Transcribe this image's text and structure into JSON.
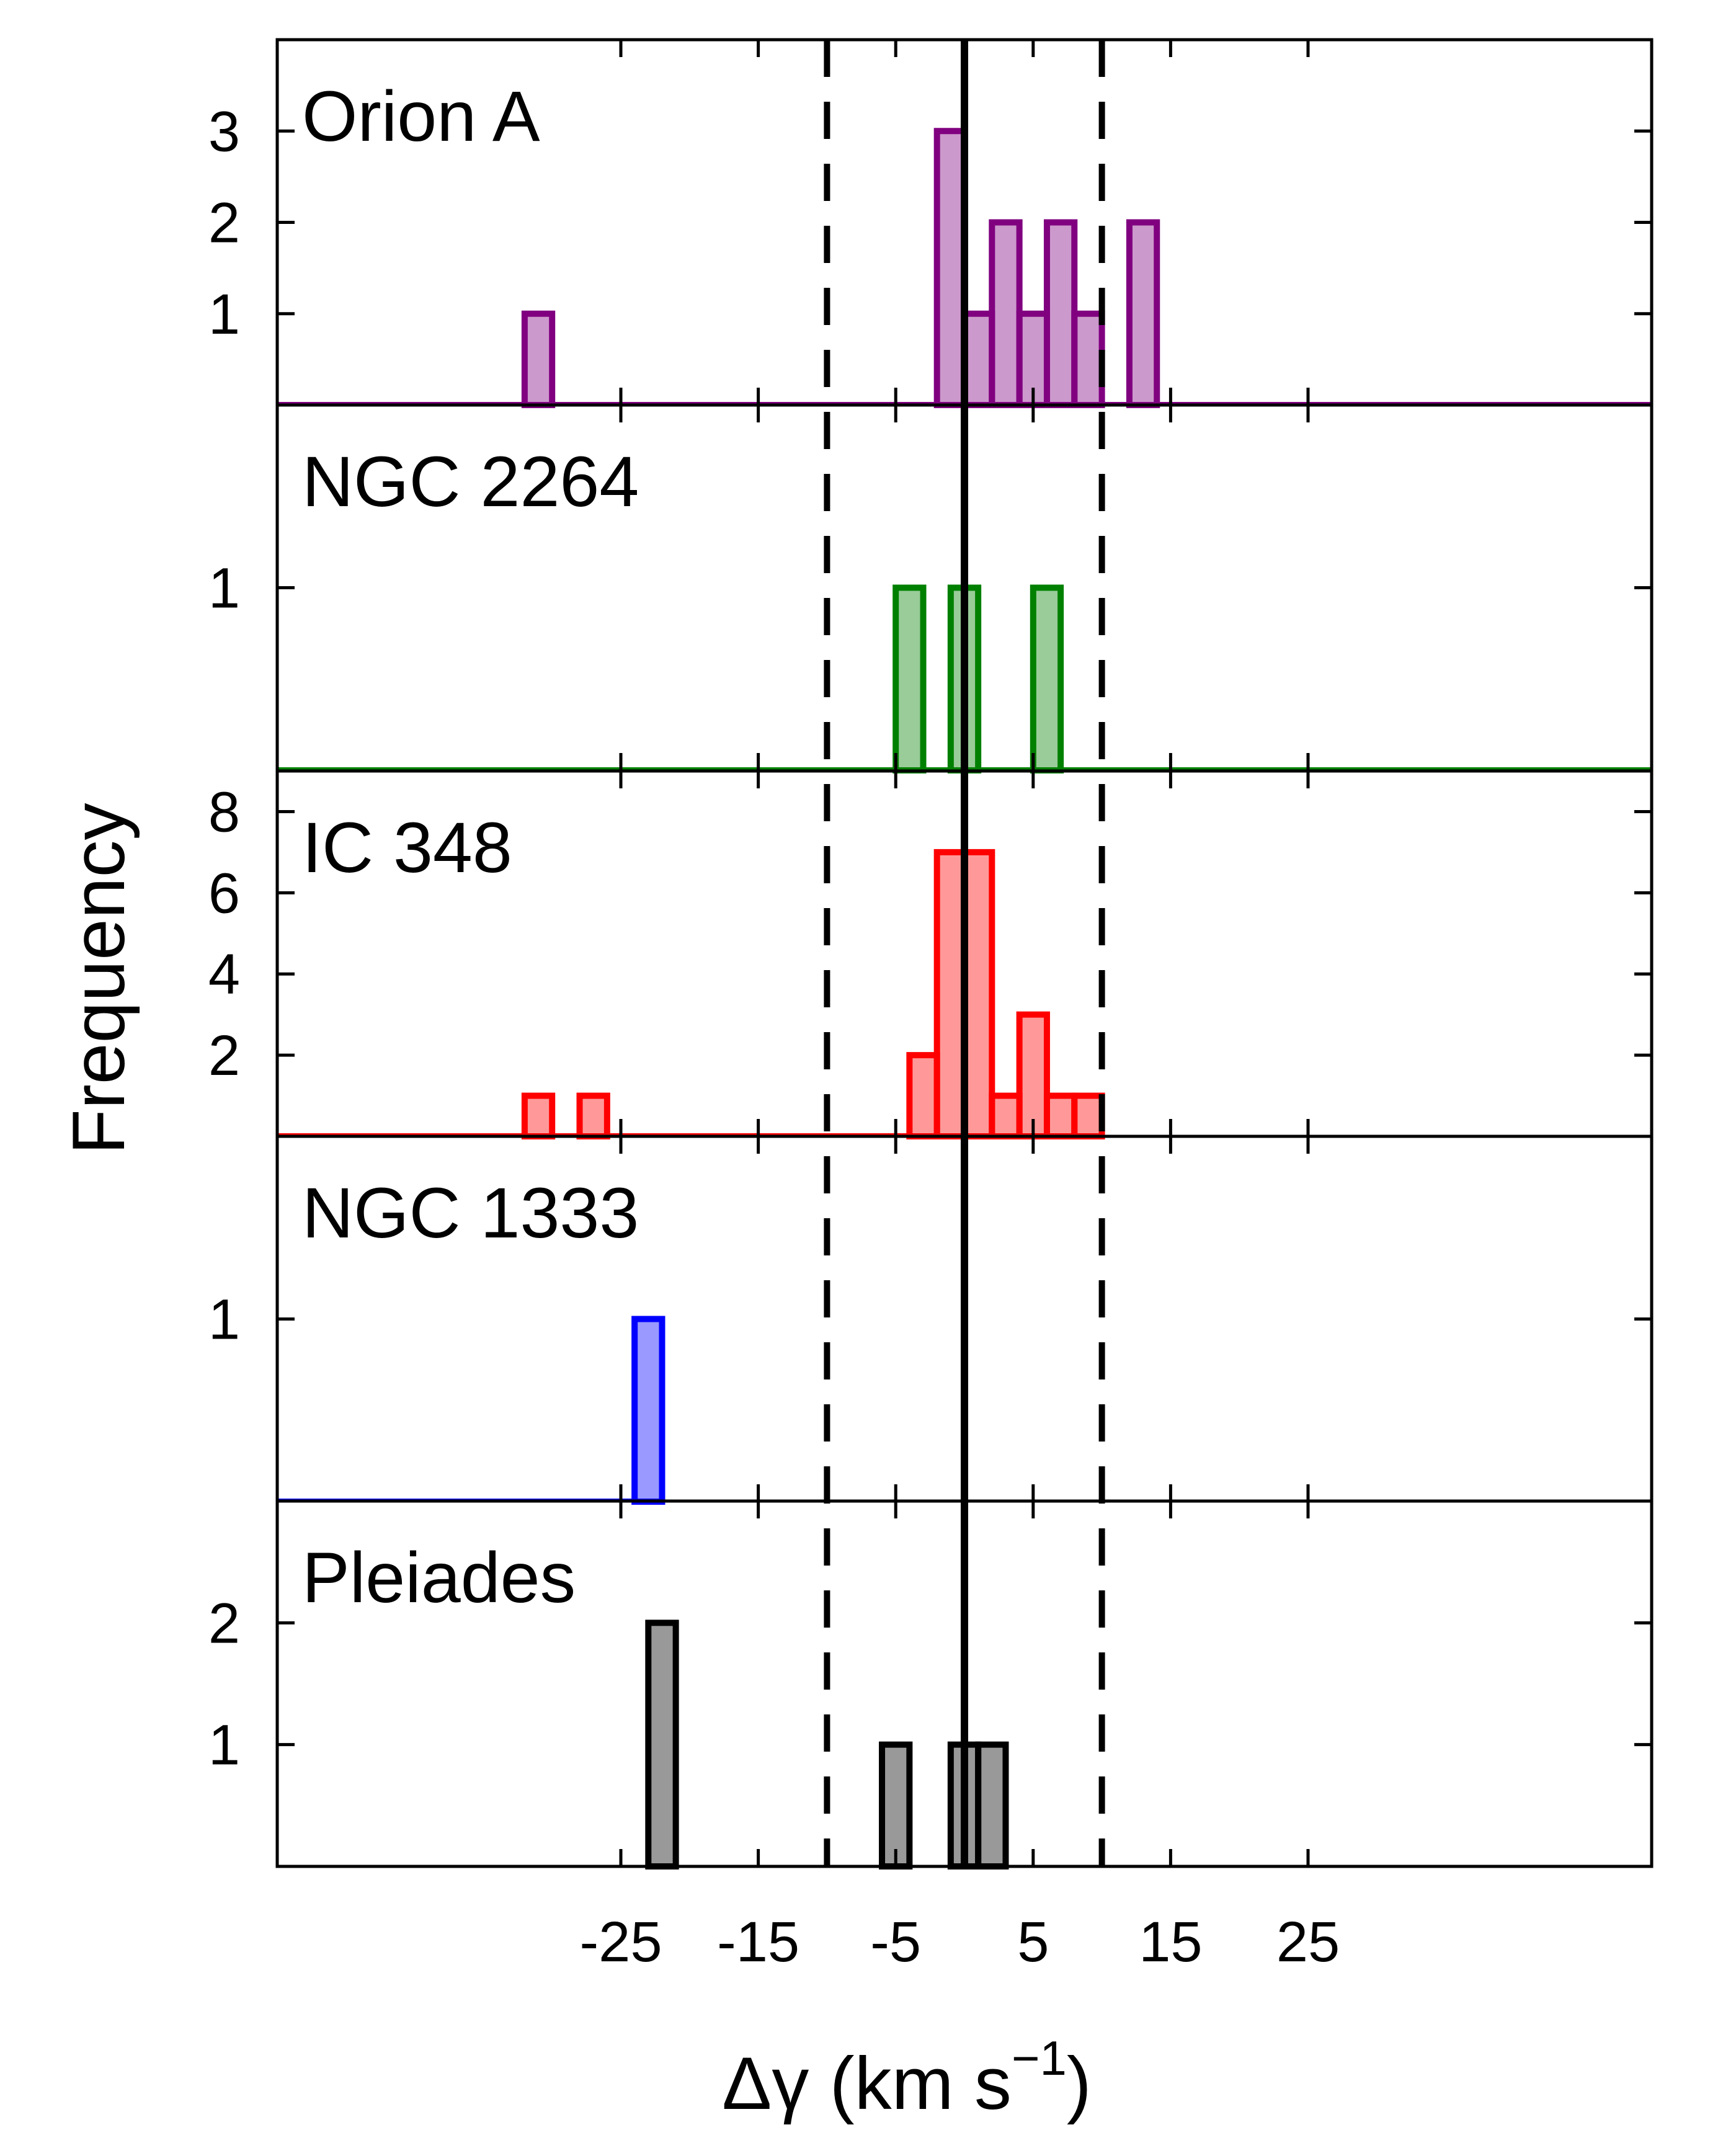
{
  "chart_data": {
    "type": "bar",
    "xlabel": "Δγ (km s",
    "xlabel_sup": "−1",
    "xlabel_close": ")",
    "ylabel": "Frequency",
    "xlim": [
      -50,
      50
    ],
    "x_ticks": [
      -25,
      -15,
      -5,
      5,
      15,
      25
    ],
    "x_tick_labels": [
      "-25",
      "-15",
      "-5",
      "5",
      "15",
      "25"
    ],
    "bin_width": 2,
    "reference_lines": {
      "solid": [
        0
      ],
      "dashed": [
        -10,
        10
      ]
    },
    "panels": [
      {
        "name": "Orion A",
        "color": "#800080",
        "fill": "#cc99cc",
        "ylim": [
          0,
          4
        ],
        "y_ticks": [
          1,
          2,
          3
        ],
        "y_tick_labels": [
          "1",
          "2",
          "3"
        ],
        "baseline_range": [
          -50,
          50
        ],
        "bins": [
          {
            "start": -32,
            "end": -30,
            "count": 1
          },
          {
            "start": -2,
            "end": 0,
            "count": 3
          },
          {
            "start": 0,
            "end": 2,
            "count": 1
          },
          {
            "start": 2,
            "end": 4,
            "count": 2
          },
          {
            "start": 4,
            "end": 6,
            "count": 1
          },
          {
            "start": 6,
            "end": 8,
            "count": 2
          },
          {
            "start": 8,
            "end": 10,
            "count": 1
          },
          {
            "start": 12,
            "end": 14,
            "count": 2
          }
        ]
      },
      {
        "name": "NGC 2264",
        "color": "#008000",
        "fill": "#99cc99",
        "ylim": [
          0,
          2
        ],
        "y_ticks": [
          1
        ],
        "y_tick_labels": [
          "1"
        ],
        "baseline_range": [
          -50,
          50
        ],
        "bins": [
          {
            "start": -5,
            "end": -3,
            "count": 1
          },
          {
            "start": -1,
            "end": 1,
            "count": 1
          },
          {
            "start": 5,
            "end": 7,
            "count": 1
          }
        ]
      },
      {
        "name": "IC 348",
        "color": "#ff0000",
        "fill": "#ff9999",
        "ylim": [
          0,
          9
        ],
        "y_ticks": [
          2,
          4,
          6,
          8
        ],
        "y_tick_labels": [
          "2",
          "4",
          "6",
          "8"
        ],
        "baseline_range": [
          -50,
          10
        ],
        "bins": [
          {
            "start": -32,
            "end": -30,
            "count": 1
          },
          {
            "start": -28,
            "end": -26,
            "count": 1
          },
          {
            "start": -4,
            "end": -2,
            "count": 2
          },
          {
            "start": -2,
            "end": 0,
            "count": 7
          },
          {
            "start": 0,
            "end": 2,
            "count": 7
          },
          {
            "start": 2,
            "end": 4,
            "count": 1
          },
          {
            "start": 4,
            "end": 6,
            "count": 3
          },
          {
            "start": 6,
            "end": 8,
            "count": 1
          },
          {
            "start": 8,
            "end": 10,
            "count": 1
          }
        ]
      },
      {
        "name": "NGC 1333",
        "color": "#0000ff",
        "fill": "#9999ff",
        "ylim": [
          0,
          2
        ],
        "y_ticks": [
          1
        ],
        "y_tick_labels": [
          "1"
        ],
        "baseline_range": [
          -50,
          -24
        ],
        "bins": [
          {
            "start": -24,
            "end": -22,
            "count": 1
          }
        ]
      },
      {
        "name": "Pleiades",
        "color": "#000000",
        "fill": "#999999",
        "ylim": [
          0,
          3
        ],
        "y_ticks": [
          1,
          2
        ],
        "y_tick_labels": [
          "1",
          "2"
        ],
        "baseline_range": [
          0,
          0
        ],
        "bins": [
          {
            "start": -23,
            "end": -21,
            "count": 2
          },
          {
            "start": -6,
            "end": -4,
            "count": 1
          },
          {
            "start": -1,
            "end": 1,
            "count": 1
          },
          {
            "start": 1,
            "end": 3,
            "count": 1
          }
        ]
      }
    ]
  }
}
